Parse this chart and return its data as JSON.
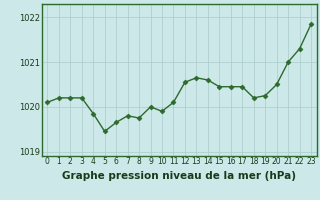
{
  "x": [
    0,
    1,
    2,
    3,
    4,
    5,
    6,
    7,
    8,
    9,
    10,
    11,
    12,
    13,
    14,
    15,
    16,
    17,
    18,
    19,
    20,
    21,
    22,
    23
  ],
  "y": [
    1020.1,
    1020.2,
    1020.2,
    1020.2,
    1019.85,
    1019.45,
    1019.65,
    1019.8,
    1019.75,
    1020.0,
    1019.9,
    1020.1,
    1020.55,
    1020.65,
    1020.6,
    1020.45,
    1020.45,
    1020.45,
    1020.2,
    1020.25,
    1020.5,
    1021.0,
    1021.3,
    1021.85
  ],
  "line_color": "#2d6a2d",
  "marker": "D",
  "marker_size": 2.5,
  "linewidth": 1.0,
  "bg_color": "#cce8e8",
  "grid_color": "#aacccc",
  "title": "Graphe pression niveau de la mer (hPa)",
  "ylim": [
    1018.9,
    1022.3
  ],
  "yticks": [
    1019,
    1020,
    1021,
    1022
  ],
  "xtick_labels": [
    "0",
    "1",
    "2",
    "3",
    "4",
    "5",
    "6",
    "7",
    "8",
    "9",
    "10",
    "11",
    "12",
    "13",
    "14",
    "15",
    "16",
    "17",
    "18",
    "19",
    "20",
    "21",
    "22",
    "23"
  ],
  "title_fontsize": 7.5,
  "tick_fontsize": 6.0,
  "spine_color": "#2d6a2d",
  "title_color": "#1a3a1a"
}
